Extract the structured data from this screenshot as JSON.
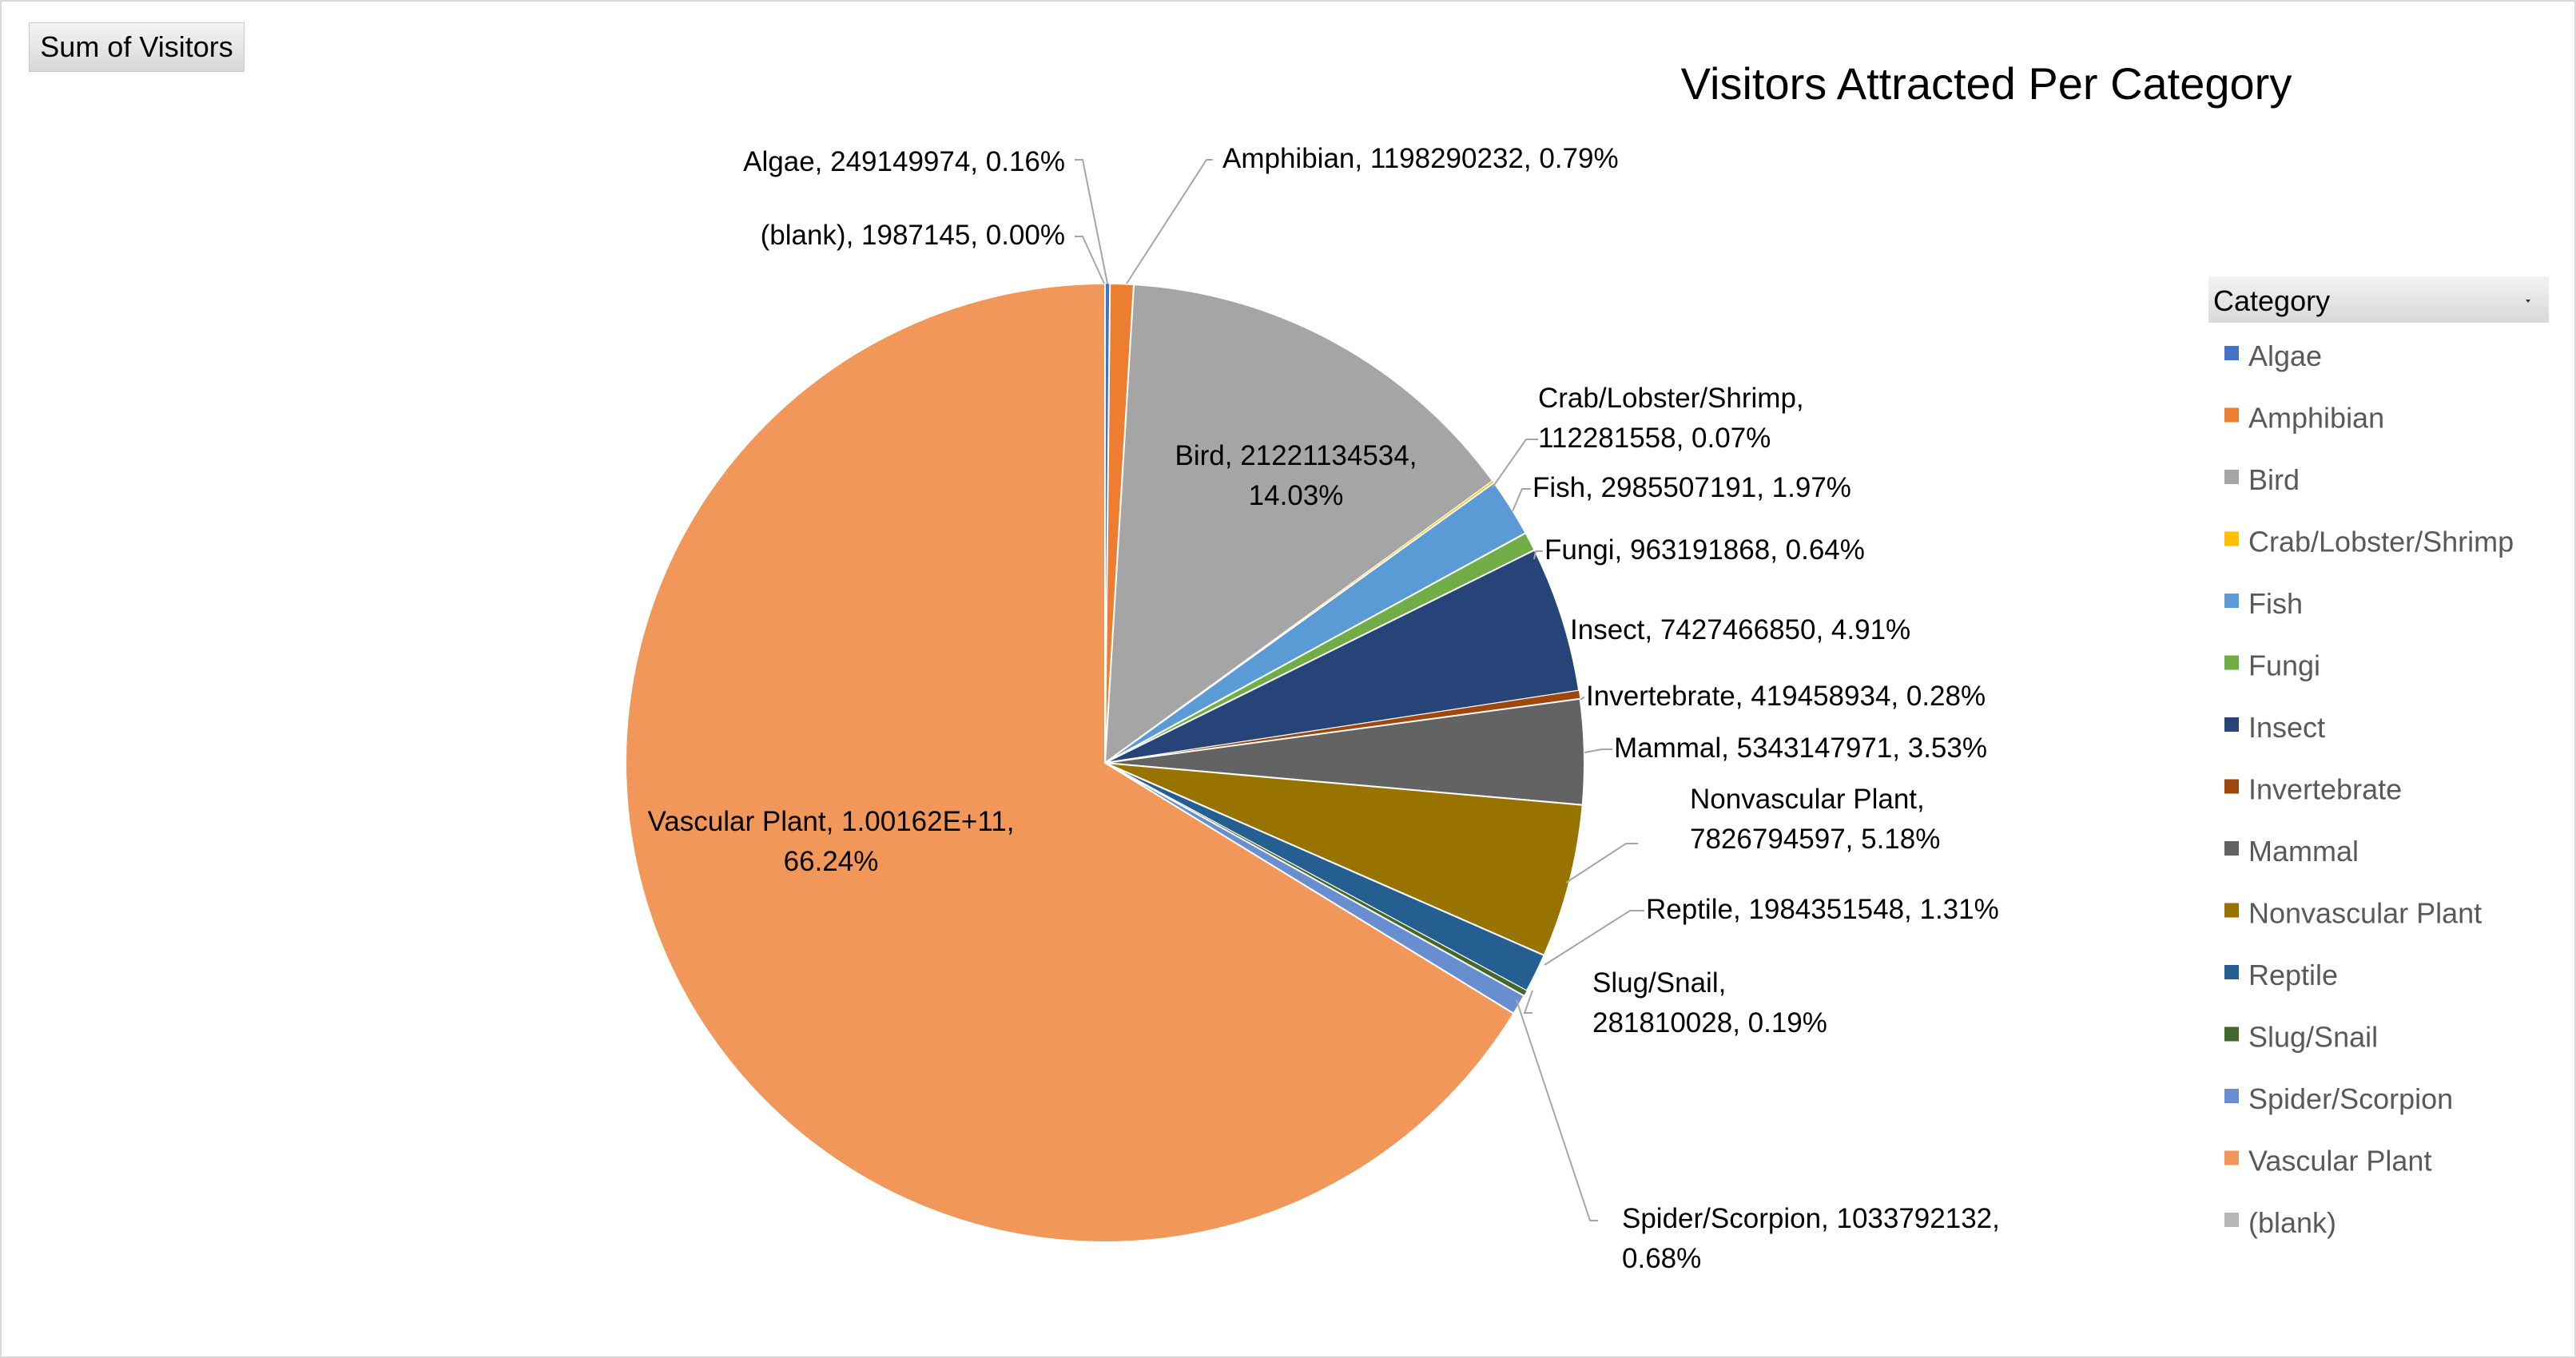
{
  "field_button": {
    "label": "Sum of Visitors"
  },
  "legend": {
    "title": "Category",
    "dropdown_icon": "dropdown-arrow-icon"
  },
  "chart_data": {
    "type": "pie",
    "title": "Visitors Attracted Per Category",
    "legend_position": "right",
    "slices": [
      {
        "name": "Algae",
        "value": 249149974,
        "percent": "0.16%",
        "color": "#4472c4",
        "label_lines": [
          "Algae, 249149974, 0.16%"
        ]
      },
      {
        "name": "Amphibian",
        "value": 1198290232,
        "percent": "0.79%",
        "color": "#ed7d31",
        "label_lines": [
          "Amphibian, 1198290232, 0.79%"
        ]
      },
      {
        "name": "Bird",
        "value": 21221134534,
        "percent": "14.03%",
        "color": "#a5a5a5",
        "label_lines": [
          "Bird, 21221134534,",
          "14.03%"
        ]
      },
      {
        "name": "Crab/Lobster/Shrimp",
        "value": 112281558,
        "percent": "0.07%",
        "color": "#ffc000",
        "label_lines": [
          "Crab/Lobster/Shrimp,",
          "112281558, 0.07%"
        ]
      },
      {
        "name": "Fish",
        "value": 2985507191,
        "percent": "1.97%",
        "color": "#5b9bd5",
        "label_lines": [
          "Fish, 2985507191, 1.97%"
        ]
      },
      {
        "name": "Fungi",
        "value": 963191868,
        "percent": "0.64%",
        "color": "#70ad47",
        "label_lines": [
          "Fungi, 963191868, 0.64%"
        ]
      },
      {
        "name": "Insect",
        "value": 7427466850,
        "percent": "4.91%",
        "color": "#264478",
        "label_lines": [
          "Insect, 7427466850, 4.91%"
        ]
      },
      {
        "name": "Invertebrate",
        "value": 419458934,
        "percent": "0.28%",
        "color": "#9e480e",
        "label_lines": [
          "Invertebrate, 419458934, 0.28%"
        ]
      },
      {
        "name": "Mammal",
        "value": 5343147971,
        "percent": "3.53%",
        "color": "#636363",
        "label_lines": [
          "Mammal, 5343147971, 3.53%"
        ]
      },
      {
        "name": "Nonvascular Plant",
        "value": 7826794597,
        "percent": "5.18%",
        "color": "#997300",
        "label_lines": [
          "Nonvascular Plant,",
          "7826794597, 5.18%"
        ]
      },
      {
        "name": "Reptile",
        "value": 1984351548,
        "percent": "1.31%",
        "color": "#255e91",
        "label_lines": [
          "Reptile, 1984351548, 1.31%"
        ]
      },
      {
        "name": "Slug/Snail",
        "value": 281810028,
        "percent": "0.19%",
        "color": "#43682b",
        "label_lines": [
          "Slug/Snail,",
          "281810028, 0.19%"
        ]
      },
      {
        "name": "Spider/Scorpion",
        "value": 1033792132,
        "percent": "0.68%",
        "color": "#698ed0",
        "label_lines": [
          "Spider/Scorpion, 1033792132,",
          "0.68%"
        ]
      },
      {
        "name": "Vascular Plant",
        "value": 100162000000,
        "percent": "66.24%",
        "color": "#f1975a",
        "label_lines": [
          "Vascular Plant, 1.00162E+11,",
          "66.24%"
        ]
      },
      {
        "name": "(blank)",
        "value": 1987145,
        "percent": "0.00%",
        "color": "#b7b7b7",
        "label_lines": [
          "(blank), 1987145, 0.00%"
        ]
      }
    ]
  }
}
